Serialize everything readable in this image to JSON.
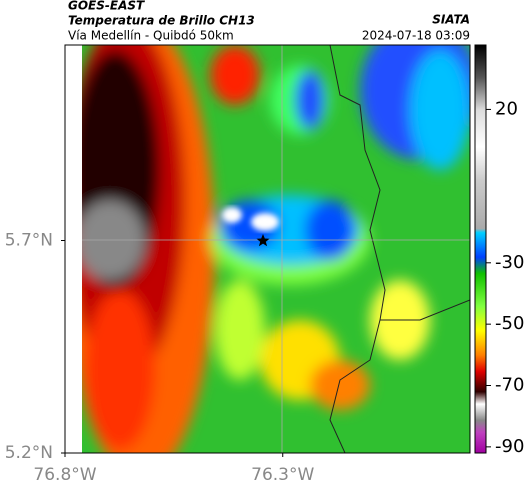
{
  "header": {
    "source": "GOES-EAST",
    "product": "Temperatura de Brillo CH13",
    "route": "Vía Medellín - Quibdó 50km",
    "agency": "SIATA",
    "timestamp": "2024-07-18 03:09"
  },
  "map": {
    "xlim": [
      -76.8,
      -75.87
    ],
    "ylim": [
      5.2,
      6.16
    ],
    "xticks": [
      {
        "value": -76.8,
        "label": "76.8°W"
      },
      {
        "value": -76.3,
        "label": "76.3°W"
      }
    ],
    "yticks": [
      {
        "value": 5.2,
        "label": "5.2°N"
      },
      {
        "value": 5.7,
        "label": "5.7°N"
      }
    ]
  },
  "colorbar": {
    "lim": [
      41,
      -92
    ],
    "ticks": [
      20,
      -30,
      -50,
      -70,
      -90
    ]
  }
}
